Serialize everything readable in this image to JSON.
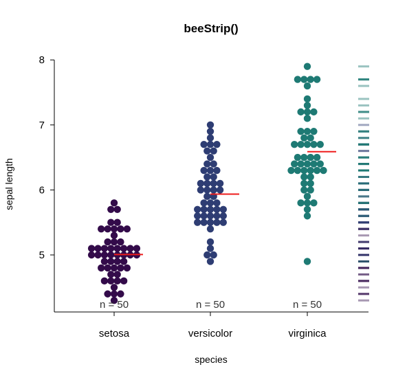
{
  "chart_data": {
    "type": "scatter",
    "title": "beeStrip()",
    "xlabel": "species",
    "ylabel": "sepal length",
    "ylim": [
      4.3,
      8.0
    ],
    "yticks": [
      5,
      6,
      7,
      8
    ],
    "categories": [
      "setosa",
      "versicolor",
      "virginica"
    ],
    "series": [
      {
        "count_label": "n = 50",
        "color": "#330b4a",
        "mean": 5.006,
        "values": [
          5.1,
          4.9,
          4.7,
          4.6,
          5.0,
          5.4,
          4.6,
          5.0,
          4.4,
          4.9,
          5.4,
          4.8,
          4.8,
          4.3,
          5.8,
          5.7,
          5.4,
          5.1,
          5.7,
          5.1,
          5.4,
          5.1,
          4.6,
          5.1,
          4.8,
          5.0,
          5.0,
          5.2,
          5.2,
          4.7,
          4.8,
          5.4,
          5.2,
          5.5,
          4.9,
          5.0,
          5.5,
          4.9,
          4.4,
          5.1,
          5.0,
          4.5,
          4.4,
          5.0,
          5.1,
          4.8,
          5.1,
          4.6,
          5.3,
          5.0
        ]
      },
      {
        "count_label": "n = 50",
        "color": "#2e3d73",
        "mean": 5.936,
        "values": [
          7.0,
          6.4,
          6.9,
          5.5,
          6.5,
          5.7,
          6.3,
          4.9,
          6.6,
          5.2,
          5.0,
          5.9,
          6.0,
          6.1,
          5.6,
          6.7,
          5.6,
          5.8,
          6.2,
          5.6,
          5.9,
          6.1,
          6.3,
          6.1,
          6.4,
          6.6,
          6.8,
          6.7,
          6.0,
          5.7,
          5.5,
          5.5,
          5.8,
          6.0,
          5.4,
          6.0,
          6.7,
          6.3,
          5.6,
          5.5,
          5.5,
          6.1,
          5.8,
          5.0,
          5.6,
          5.7,
          5.7,
          6.2,
          5.1,
          5.7
        ]
      },
      {
        "count_label": "n = 50",
        "color": "#1e7a74",
        "mean": 6.588,
        "values": [
          6.3,
          5.8,
          7.1,
          6.3,
          6.5,
          7.6,
          4.9,
          7.3,
          6.7,
          7.2,
          6.5,
          6.4,
          6.8,
          5.7,
          5.8,
          6.4,
          6.5,
          7.7,
          7.7,
          6.0,
          6.9,
          5.6,
          7.7,
          6.3,
          6.7,
          7.2,
          6.2,
          6.1,
          6.4,
          7.2,
          7.4,
          7.9,
          6.4,
          6.3,
          6.1,
          7.7,
          6.3,
          6.4,
          6.0,
          6.9,
          6.7,
          6.9,
          5.8,
          6.8,
          6.7,
          6.7,
          6.3,
          6.5,
          6.2,
          5.9
        ]
      }
    ],
    "mean_line_color": "#ee1c1c",
    "rug_colors": [
      "#3c1a55",
      "#2e3d73",
      "#1e7a74"
    ]
  }
}
